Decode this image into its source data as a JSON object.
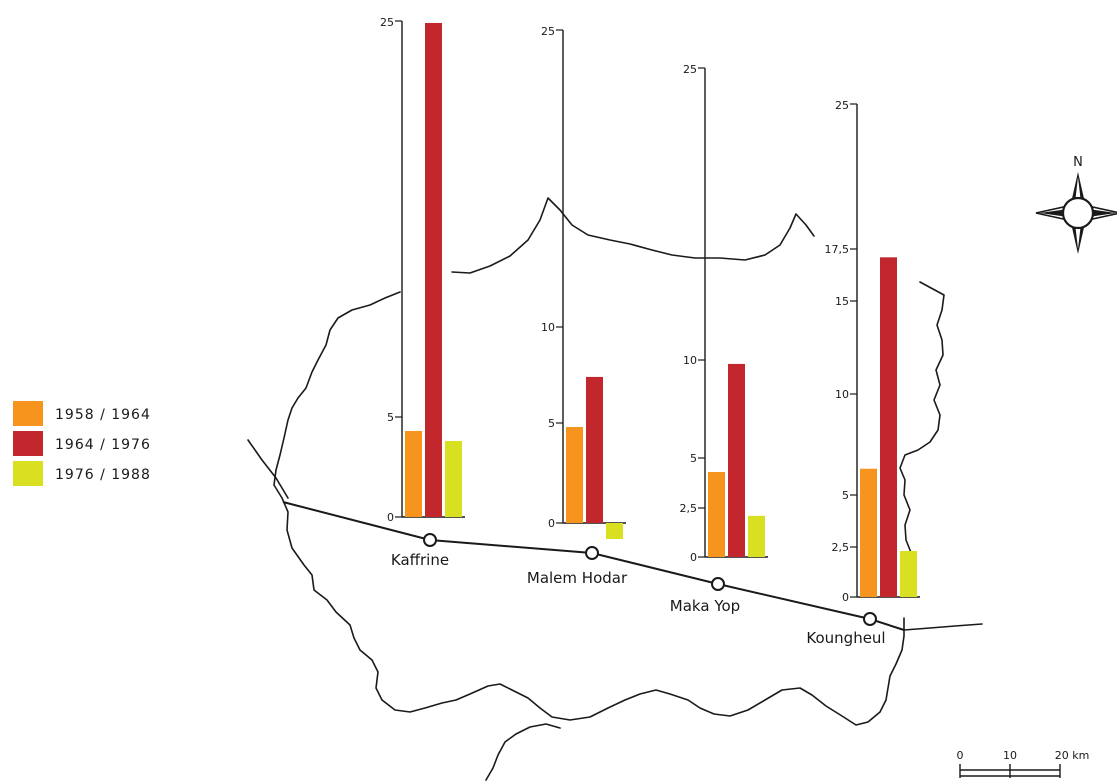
{
  "legend": [
    {
      "label": "1958 / 1964",
      "color": "#f7941d"
    },
    {
      "label": "1964 / 1976",
      "color": "#c1272d"
    },
    {
      "label": "1976 / 1988",
      "color": "#d9e021"
    }
  ],
  "chart_data": [
    {
      "type": "bar",
      "place": "Kaffrine",
      "categories": [
        "1958 / 1964",
        "1964 / 1976",
        "1976 / 1988"
      ],
      "values": [
        4.3,
        24.9,
        3.8
      ],
      "yticks": [
        {
          "value": 0,
          "label": "0"
        },
        {
          "value": 5,
          "label": "5"
        },
        {
          "value": 25,
          "label": "25"
        }
      ],
      "ylim": [
        0,
        25
      ]
    },
    {
      "type": "bar",
      "place": "Malem Hodar",
      "categories": [
        "1958 / 1964",
        "1964 / 1976",
        "1976 / 1988"
      ],
      "values": [
        4.8,
        7.4,
        -0.8
      ],
      "yticks": [
        {
          "value": 0,
          "label": "0"
        },
        {
          "value": 5,
          "label": "5"
        },
        {
          "value": 10,
          "label": "10"
        },
        {
          "value": 25,
          "label": "25"
        }
      ],
      "ylim": [
        0,
        25
      ]
    },
    {
      "type": "bar",
      "place": "Maka Yop",
      "categories": [
        "1958 / 1964",
        "1964 / 1976",
        "1976 / 1988"
      ],
      "values": [
        4.3,
        9.8,
        2.1
      ],
      "yticks": [
        {
          "value": 0,
          "label": "0"
        },
        {
          "value": 2.5,
          "label": "2,5"
        },
        {
          "value": 5,
          "label": "5"
        },
        {
          "value": 10,
          "label": "10"
        },
        {
          "value": 25,
          "label": "25"
        }
      ],
      "ylim": [
        0,
        25
      ]
    },
    {
      "type": "bar",
      "place": "Koungheul",
      "categories": [
        "1958 / 1964",
        "1964 / 1976",
        "1976 / 1988"
      ],
      "values": [
        6.3,
        17.1,
        2.3
      ],
      "yticks": [
        {
          "value": 0,
          "label": "0"
        },
        {
          "value": 2.5,
          "label": "2,5"
        },
        {
          "value": 5,
          "label": "5"
        },
        {
          "value": 10,
          "label": "10"
        },
        {
          "value": 15,
          "label": "15"
        },
        {
          "value": 17.5,
          "label": "17,5"
        },
        {
          "value": 25,
          "label": "25"
        }
      ],
      "ylim": [
        0,
        25
      ]
    }
  ],
  "towns": [
    "Kaffrine",
    "Malem Hodar",
    "Maka Yop",
    "Koungheul"
  ],
  "compass": {
    "north_label": "N"
  },
  "scale_bar": {
    "labels": [
      "0",
      "10",
      "20 km"
    ]
  }
}
